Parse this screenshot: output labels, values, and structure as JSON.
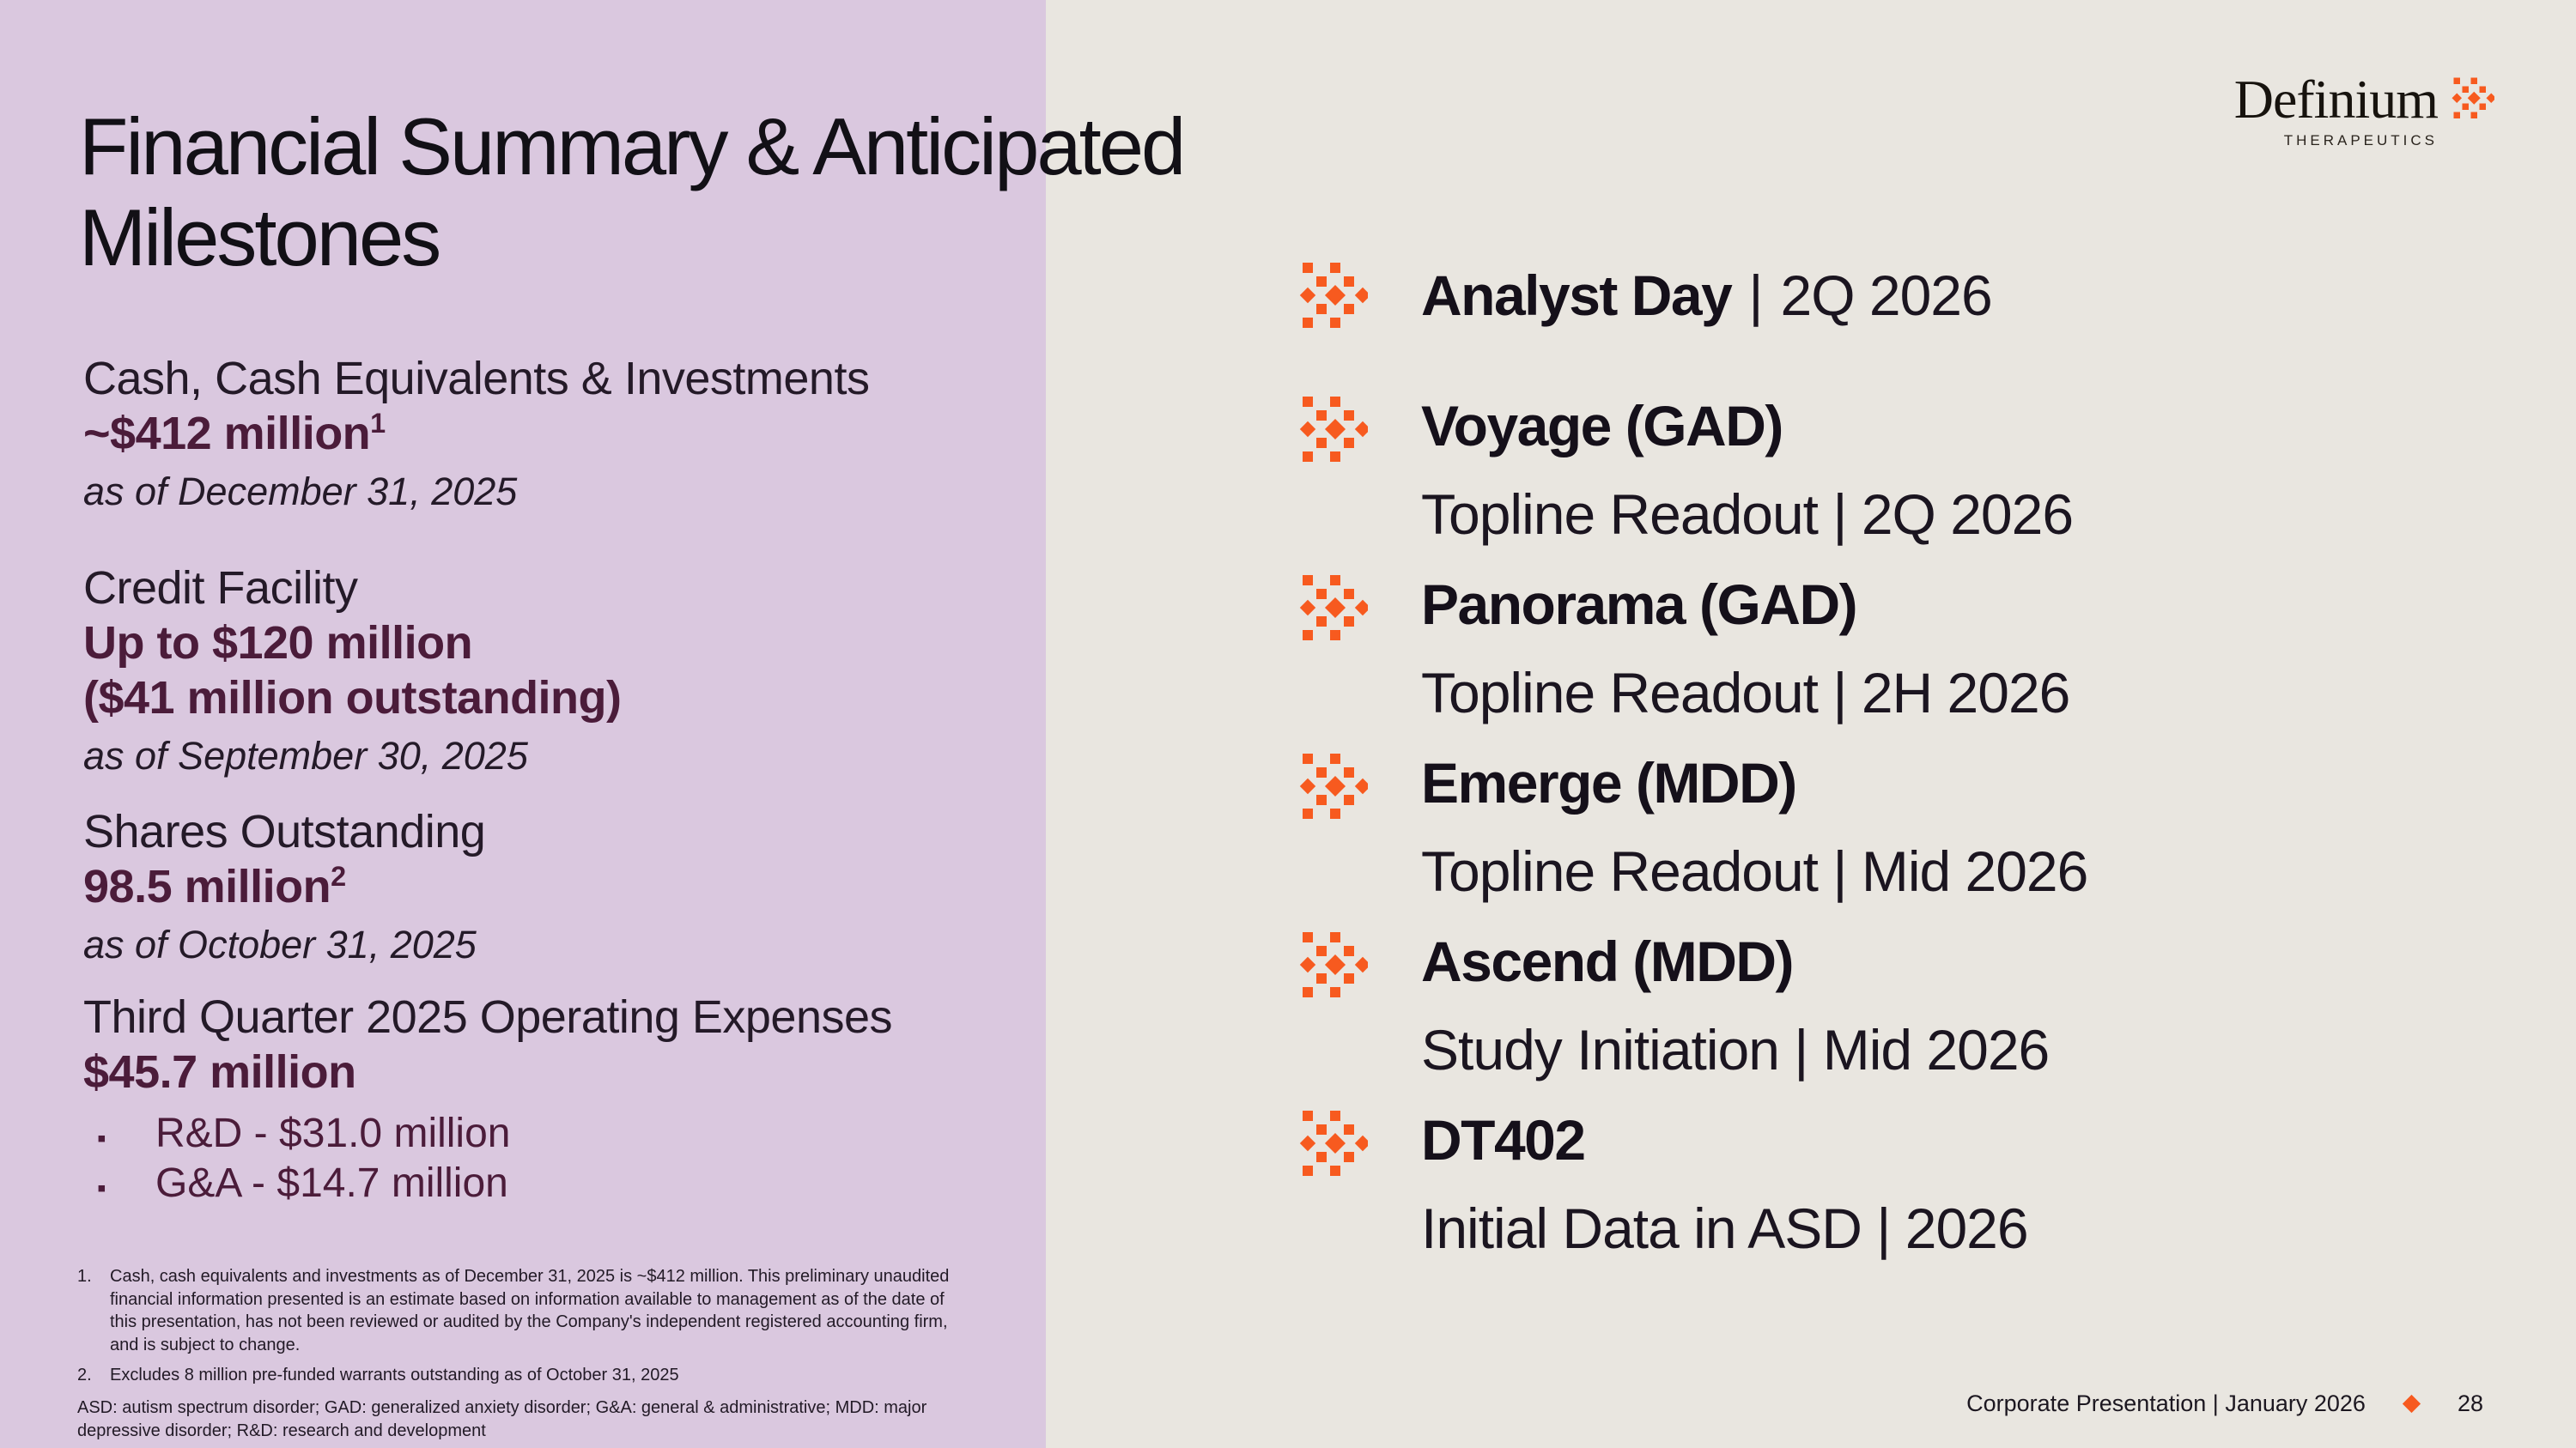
{
  "colors": {
    "left_bg": "#dac8df",
    "right_bg": "#e9e6e0",
    "plum": "#4b1c3a",
    "orange": "#f75a1f",
    "ink": "#1c1420"
  },
  "slide": {
    "title": "Financial Summary & Anticipated Milestones",
    "separator": "|",
    "bullet_char": "▪"
  },
  "logo": {
    "name": "Definium",
    "subtitle": "THERAPEUTICS"
  },
  "financials": [
    {
      "label": "Cash, Cash Equivalents & Investments",
      "value": "~$412 million",
      "sup": "1",
      "date": "as of December 31, 2025"
    },
    {
      "label": "Credit Facility",
      "value": "Up to $120 million",
      "value2": "($41 million outstanding)",
      "date": "as of September 30, 2025"
    },
    {
      "label": "Shares Outstanding",
      "value": "98.5 million",
      "sup": "2",
      "date": "as of October 31, 2025"
    },
    {
      "label": "Third Quarter 2025 Operating Expenses",
      "value": "$45.7 million",
      "bullets": [
        "R&D - $31.0 million",
        "G&A - $14.7 million"
      ]
    }
  ],
  "milestones": [
    {
      "title": "Analyst Day",
      "detail": "2Q 2026",
      "layout": "inline"
    },
    {
      "title": "Voyage (GAD)",
      "detail": "Topline Readout | 2Q 2026"
    },
    {
      "title": "Panorama (GAD)",
      "detail": "Topline Readout | 2H 2026"
    },
    {
      "title": "Emerge (MDD)",
      "detail": "Topline Readout | Mid 2026"
    },
    {
      "title": "Ascend (MDD)",
      "detail": "Study Initiation | Mid 2026"
    },
    {
      "title": "DT402",
      "detail": "Initial Data in ASD | 2026"
    }
  ],
  "footnotes": [
    {
      "num": "1.",
      "text": "Cash, cash equivalents and investments as of December 31, 2025 is ~$412 million. This preliminary unaudited financial information presented is an estimate based on information available to management as of the date of this presentation, has not been reviewed or audited by the Company's independent registered accounting firm, and is subject to change."
    },
    {
      "num": "2.",
      "text": "Excludes 8 million pre-funded warrants outstanding as of October 31, 2025"
    }
  ],
  "abbreviations": "ASD: autism spectrum disorder; GAD: generalized anxiety disorder; G&A: general & administrative; MDD: major depressive disorder; R&D: research and development",
  "footer": {
    "text": "Corporate Presentation | January 2026",
    "page": "28"
  }
}
